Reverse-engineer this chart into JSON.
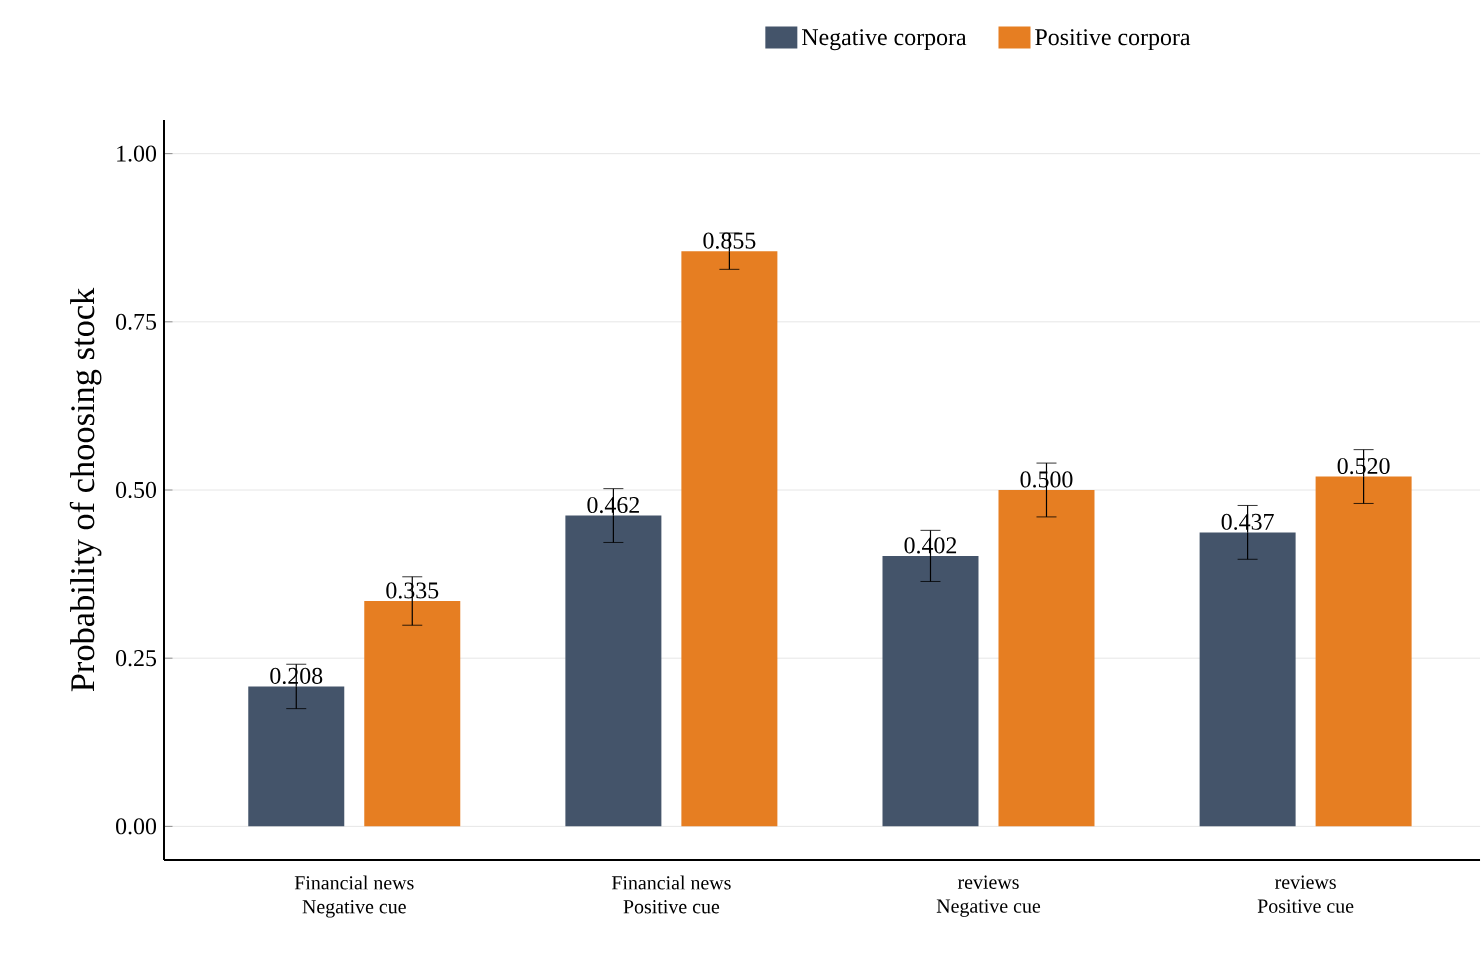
{
  "chart_data": {
    "type": "bar",
    "ylabel": "Probability of choosing stock",
    "categories": [
      "Financial news\nNegative cue",
      "Financial news\nPositive cue",
      "reviews\nNegative cue",
      "reviews\nPositive cue"
    ],
    "series": [
      {
        "name": "Negative corpora",
        "color": "#44546a",
        "values": [
          0.208,
          0.462,
          0.402,
          0.437
        ],
        "errors": [
          0.033,
          0.04,
          0.038,
          0.04
        ],
        "value_labels": [
          "0.208",
          "0.462",
          "0.402",
          "0.437"
        ]
      },
      {
        "name": "Positive corpora",
        "color": "#e67e22",
        "values": [
          0.335,
          0.855,
          0.5,
          0.52
        ],
        "errors": [
          0.036,
          0.027,
          0.04,
          0.04
        ],
        "value_labels": [
          "0.335",
          "0.855",
          "0.500",
          "0.520"
        ]
      }
    ],
    "ylim": [
      -0.05,
      1.05
    ],
    "yticks": [
      {
        "value": 0,
        "label": "0.00"
      },
      {
        "value": 0.25,
        "label": "0.25"
      },
      {
        "value": 0.5,
        "label": "0.50"
      },
      {
        "value": 0.75,
        "label": "0.75"
      },
      {
        "value": 1,
        "label": "1.00"
      }
    ],
    "grid": "y",
    "legend": "top"
  }
}
